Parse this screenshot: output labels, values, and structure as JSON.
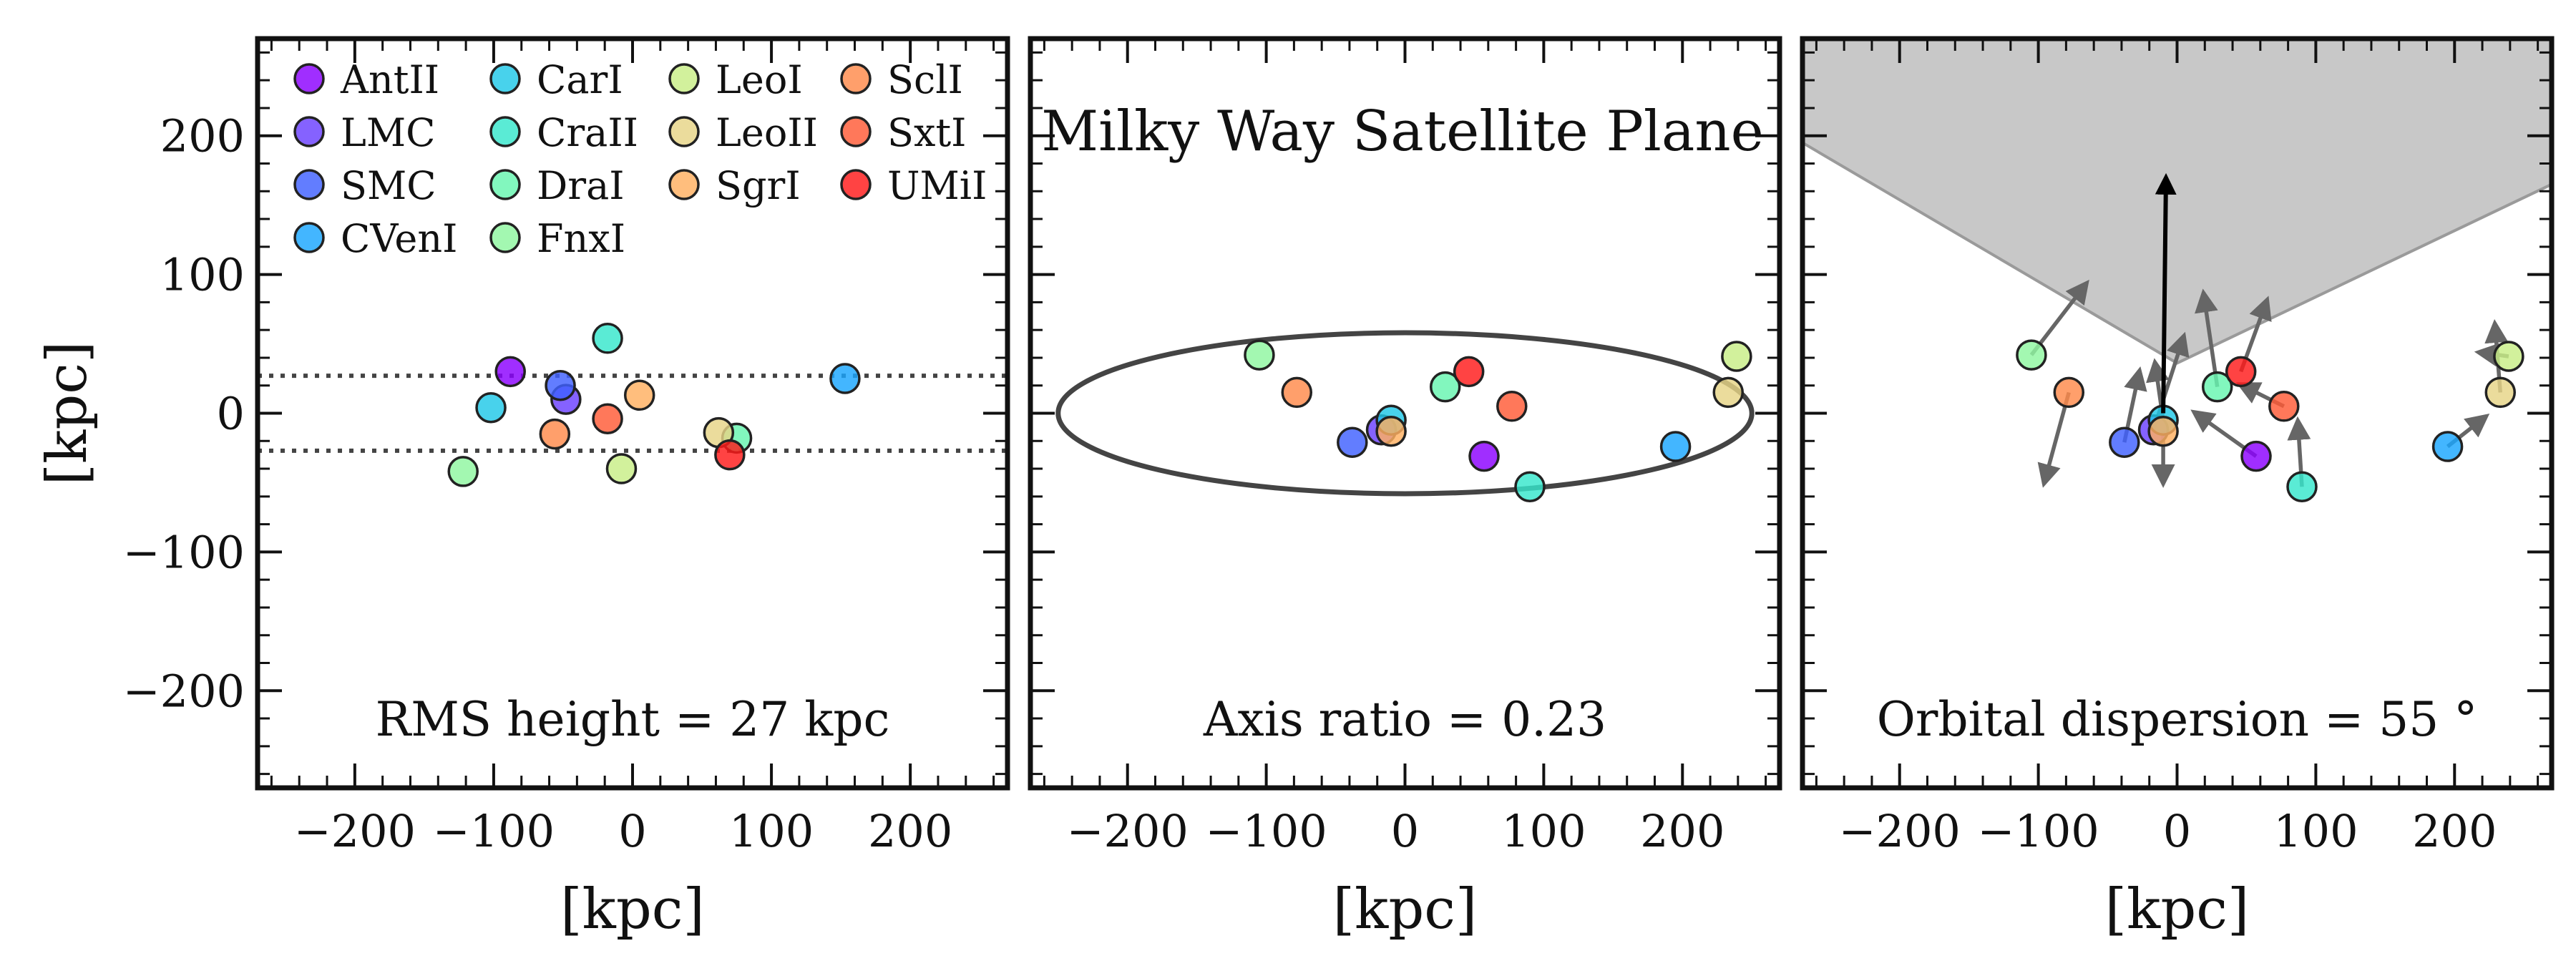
{
  "figure_title": "Milky Way Satellite Plane",
  "chart_data": [
    {
      "type": "scatter",
      "panel": "left",
      "xlabel": "[kpc]",
      "ylabel": "[kpc]",
      "xlim": [
        -270,
        270
      ],
      "ylim": [
        -270,
        270
      ],
      "x_ticks": [
        -200,
        -100,
        0,
        100,
        200
      ],
      "y_ticks": [
        -200,
        -100,
        0,
        100,
        200
      ],
      "annotation": "RMS height = 27 kpc",
      "reference_lines": [
        27,
        -27
      ],
      "legend_position": "top-left",
      "points": [
        {
          "name": "AntII",
          "x": -88,
          "y": 30
        },
        {
          "name": "LMC",
          "x": -48,
          "y": 10
        },
        {
          "name": "SMC",
          "x": -52,
          "y": 20
        },
        {
          "name": "CVenI",
          "x": 153,
          "y": 25
        },
        {
          "name": "CarI",
          "x": -102,
          "y": 4
        },
        {
          "name": "CraII",
          "x": -18,
          "y": 54
        },
        {
          "name": "DraI",
          "x": 75,
          "y": -18
        },
        {
          "name": "FnxI",
          "x": -122,
          "y": -42
        },
        {
          "name": "LeoI",
          "x": -8,
          "y": -40
        },
        {
          "name": "LeoII",
          "x": 62,
          "y": -14
        },
        {
          "name": "SgrI",
          "x": 5,
          "y": 13
        },
        {
          "name": "SclI",
          "x": -56,
          "y": -15
        },
        {
          "name": "SxtI",
          "x": -18,
          "y": -4
        },
        {
          "name": "UMiI",
          "x": 70,
          "y": -30
        }
      ]
    },
    {
      "type": "scatter",
      "panel": "middle",
      "title": "Milky Way Satellite Plane",
      "xlabel": "[kpc]",
      "xlim": [
        -270,
        270
      ],
      "ylim": [
        -270,
        270
      ],
      "x_ticks": [
        -200,
        -100,
        0,
        100,
        200
      ],
      "annotation": "Axis ratio = 0.23",
      "ellipse": {
        "cx": 0,
        "cy": 0,
        "rx": 250,
        "ry": 58
      },
      "points": [
        {
          "name": "AntII",
          "x": 57,
          "y": -31
        },
        {
          "name": "LMC",
          "x": -17,
          "y": -12
        },
        {
          "name": "SMC",
          "x": -38,
          "y": -21
        },
        {
          "name": "CVenI",
          "x": 195,
          "y": -24
        },
        {
          "name": "CarI",
          "x": -10,
          "y": -5
        },
        {
          "name": "CraII",
          "x": 90,
          "y": -53
        },
        {
          "name": "DraI",
          "x": 29,
          "y": 19
        },
        {
          "name": "FnxI",
          "x": -105,
          "y": 42
        },
        {
          "name": "LeoI",
          "x": 239,
          "y": 41
        },
        {
          "name": "LeoII",
          "x": 233,
          "y": 15
        },
        {
          "name": "SgrI",
          "x": -10,
          "y": -13
        },
        {
          "name": "SclI",
          "x": -78,
          "y": 15
        },
        {
          "name": "SxtI",
          "x": 77,
          "y": 5
        },
        {
          "name": "UMiI",
          "x": 46,
          "y": 30
        }
      ]
    },
    {
      "type": "scatter",
      "panel": "right",
      "xlabel": "[kpc]",
      "xlim": [
        -270,
        270
      ],
      "ylim": [
        -270,
        270
      ],
      "x_ticks": [
        -200,
        -100,
        0,
        100,
        200
      ],
      "annotation": "Orbital dispersion = 55 °",
      "mean_vector": {
        "x0": -10,
        "y0": 0,
        "x1": -8,
        "y1": 170
      },
      "points": [
        {
          "name": "AntII",
          "x": 57,
          "y": -31,
          "dx": -45,
          "dy": 32
        },
        {
          "name": "LMC",
          "x": -17,
          "y": -12,
          "dx": 22,
          "dy": 68
        },
        {
          "name": "SMC",
          "x": -38,
          "y": -21,
          "dx": 11,
          "dy": 52
        },
        {
          "name": "CVenI",
          "x": 195,
          "y": -24,
          "dx": 28,
          "dy": 22
        },
        {
          "name": "CarI",
          "x": -10,
          "y": -5,
          "dx": -6,
          "dy": 42
        },
        {
          "name": "CraII",
          "x": 90,
          "y": -53,
          "dx": -3,
          "dy": 48
        },
        {
          "name": "DraI",
          "x": 29,
          "y": 19,
          "dx": -10,
          "dy": 68
        },
        {
          "name": "FnxI",
          "x": -105,
          "y": 42,
          "dx": 40,
          "dy": 52
        },
        {
          "name": "LeoI",
          "x": 239,
          "y": 41,
          "dx": -22,
          "dy": 3
        },
        {
          "name": "LeoII",
          "x": 233,
          "y": 15,
          "dx": -4,
          "dy": 50
        },
        {
          "name": "SgrI",
          "x": -10,
          "y": -13,
          "dx": 0,
          "dy": -38
        },
        {
          "name": "SclI",
          "x": -78,
          "y": 15,
          "dx": -18,
          "dy": -66
        },
        {
          "name": "SxtI",
          "x": 77,
          "y": 5,
          "dx": -32,
          "dy": 16
        },
        {
          "name": "UMiI",
          "x": 46,
          "y": 30,
          "dx": 19,
          "dy": 52
        }
      ]
    }
  ],
  "legend": [
    {
      "name": "AntII",
      "color": "#8b00ff"
    },
    {
      "name": "LMC",
      "color": "#6a40ff"
    },
    {
      "name": "SMC",
      "color": "#4060ff"
    },
    {
      "name": "CVenI",
      "color": "#1aa6ff"
    },
    {
      "name": "CarI",
      "color": "#20c8e8"
    },
    {
      "name": "CraII",
      "color": "#36e6cc"
    },
    {
      "name": "DraI",
      "color": "#66f5b0"
    },
    {
      "name": "FnxI",
      "color": "#8ff7a0"
    },
    {
      "name": "LeoI",
      "color": "#c8ee86"
    },
    {
      "name": "LeoII",
      "color": "#e6d486"
    },
    {
      "name": "SgrI",
      "color": "#ffb060"
    },
    {
      "name": "SclI",
      "color": "#ff8a4a"
    },
    {
      "name": "SxtI",
      "color": "#ff5a36"
    },
    {
      "name": "UMiI",
      "color": "#ff1a1a"
    }
  ]
}
